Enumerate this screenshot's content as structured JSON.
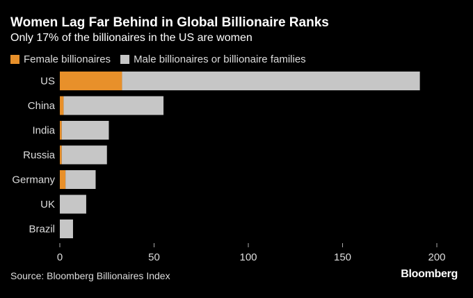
{
  "chart_data": {
    "type": "bar",
    "orientation": "horizontal",
    "stacked": true,
    "title": "Women Lag Far Behind in Global Billionaire Ranks",
    "subtitle": "Only 17% of the billionaires in the US are women",
    "categories": [
      "US",
      "China",
      "India",
      "Russia",
      "Germany",
      "UK",
      "Brazil"
    ],
    "series": [
      {
        "name": "Female billionaires",
        "color": "#e8902a",
        "values": [
          33,
          2,
          1,
          1,
          3,
          0,
          0
        ]
      },
      {
        "name": "Male billionaires or billionaire families",
        "color": "#c6c6c6",
        "values": [
          158,
          53,
          25,
          24,
          16,
          14,
          7
        ]
      }
    ],
    "xlim": [
      0,
      200
    ],
    "xticks": [
      0,
      50,
      100,
      150,
      200
    ],
    "grid": false,
    "legend_position": "top-left"
  },
  "footer": {
    "source": "Source: Bloomberg Billionaires Index",
    "brand": "Bloomberg"
  }
}
